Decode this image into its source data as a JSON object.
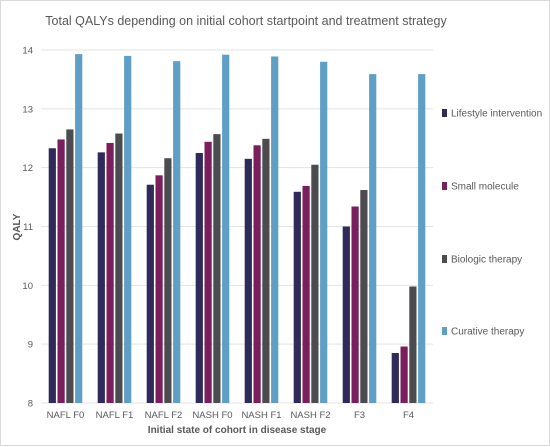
{
  "chart_data": {
    "type": "bar",
    "title": "Total QALYs depending on initial cohort startpoint and treatment strategy",
    "xlabel": "Initial state of cohort in disease stage",
    "ylabel": "QALY",
    "ylim": [
      8,
      14
    ],
    "yticks": [
      8,
      9,
      10,
      11,
      12,
      13,
      14
    ],
    "grid": true,
    "legend_position": "right",
    "categories": [
      "NAFL F0",
      "NAFL F1",
      "NAFL F2",
      "NASH F0",
      "NASH F1",
      "NASH F2",
      "F3",
      "F4"
    ],
    "series": [
      {
        "name": "Lifestyle intervention",
        "color": "#2e2a5a",
        "values": [
          12.33,
          12.26,
          11.71,
          12.25,
          12.15,
          11.59,
          11.0,
          8.85
        ]
      },
      {
        "name": "Small molecule",
        "color": "#7b1e5d",
        "values": [
          12.48,
          12.42,
          11.87,
          12.44,
          12.38,
          11.69,
          11.34,
          8.96
        ]
      },
      {
        "name": "Biologic therapy",
        "color": "#4b4b50",
        "values": [
          12.65,
          12.58,
          12.16,
          12.57,
          12.49,
          12.05,
          11.62,
          9.98
        ]
      },
      {
        "name": "Curative therapy",
        "color": "#5f9ec5",
        "values": [
          13.93,
          13.9,
          13.81,
          13.92,
          13.89,
          13.8,
          13.59,
          13.59
        ]
      }
    ]
  }
}
